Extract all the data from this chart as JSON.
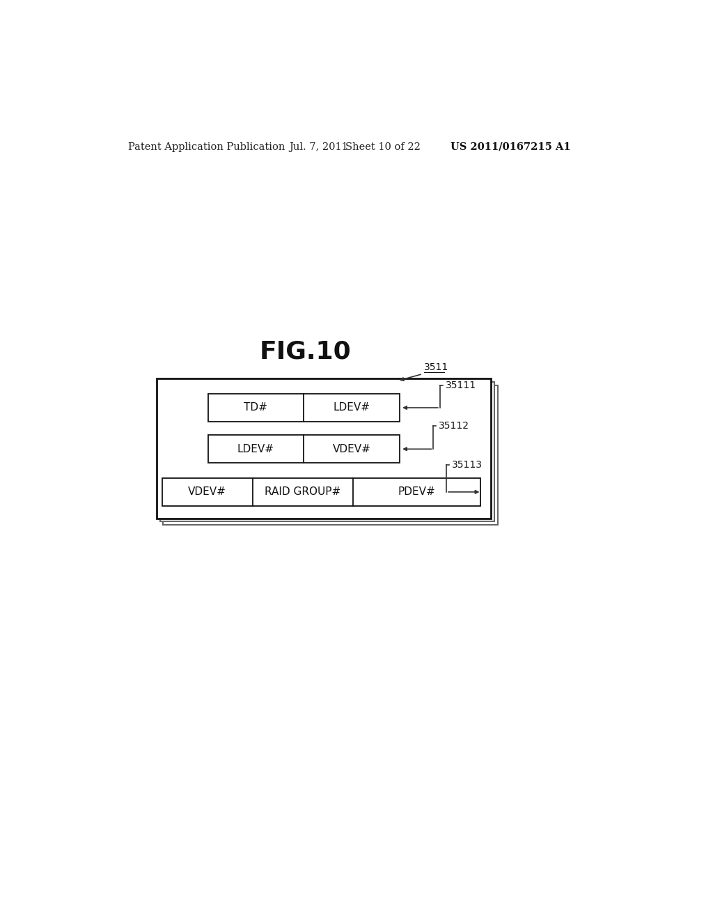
{
  "bg_color": "#ffffff",
  "fig_title": "FIG.10",
  "fig_title_fontsize": 26,
  "header_text": "Patent Application Publication",
  "header_date": "Jul. 7, 2011",
  "header_sheet": "Sheet 10 of 22",
  "header_patent": "US 2011/0167215 A1",
  "header_fontsize": 10.5,
  "outer_label": "3511",
  "row1_label": "35111",
  "row2_label": "35112",
  "row3_label": "35113",
  "row1_cells": [
    "TD#",
    "LDEV#"
  ],
  "row2_cells": [
    "LDEV#",
    "VDEV#"
  ],
  "row3_cells": [
    "VDEV#",
    "RAID GROUP#",
    "PDEV#"
  ],
  "cell_fontsize": 11,
  "label_fontsize": 10
}
